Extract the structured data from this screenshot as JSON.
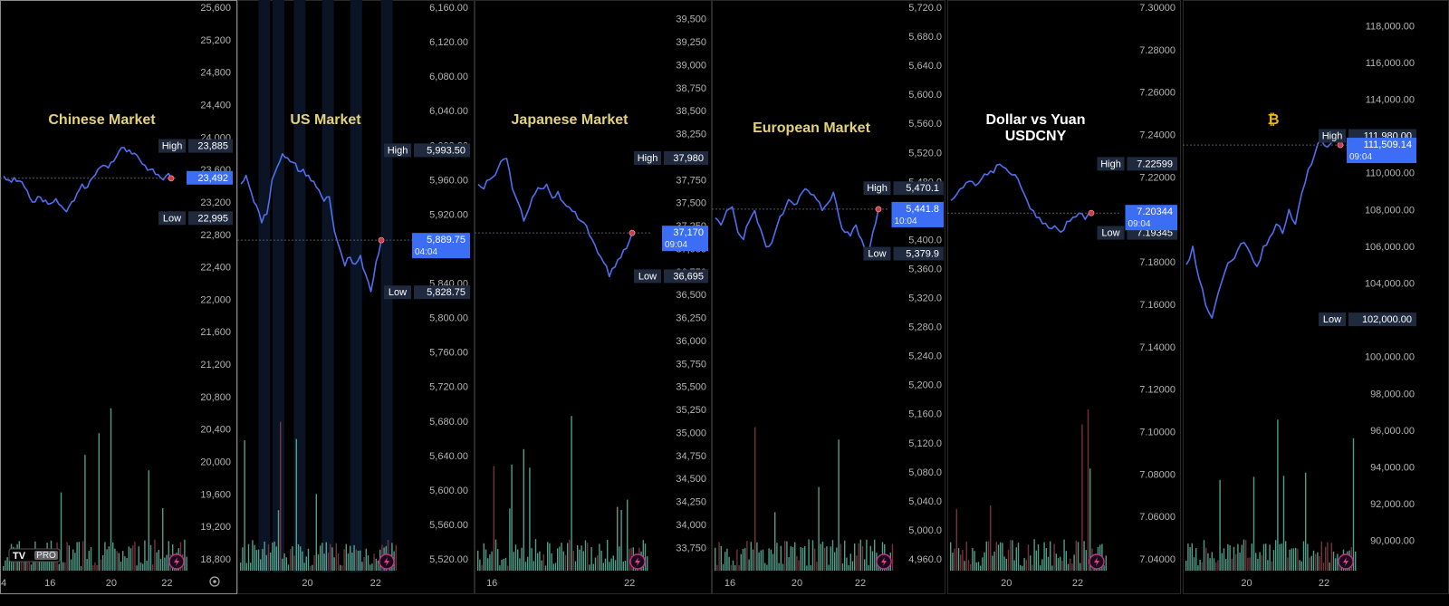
{
  "colors": {
    "background": "#000000",
    "line": "#4f6ff0",
    "volume_up": "#5fb8a0",
    "volume_down": "#8a3b45",
    "badge_tag": "#1f2a3f",
    "badge_price": "#3b6ef5",
    "title_yellow": "#e3d27a",
    "title_white": "#ffffff",
    "divider": "#2a2a2a"
  },
  "branding": {
    "logo_text": "TV",
    "pro_label": "PRO"
  },
  "chart_data": [
    {
      "type": "line",
      "title": "Chinese Market",
      "title_color": "#e3d27a",
      "y_ticks": [
        "25,600",
        "25,200",
        "24,800",
        "24,400",
        "24,000",
        "23,600",
        "23,200",
        "22,800",
        "22,400",
        "22,000",
        "21,600",
        "21,200",
        "20,800",
        "20,400",
        "20,000",
        "19,600",
        "19,200",
        "18,800"
      ],
      "ylim": [
        18800,
        25600
      ],
      "x_ticks": [
        {
          "label": "4",
          "x": 0
        },
        {
          "label": "16",
          "x": 0.25
        },
        {
          "label": "20",
          "x": 0.58
        },
        {
          "label": "22",
          "x": 0.88
        }
      ],
      "high": {
        "label": "High",
        "value": "23,885"
      },
      "low": {
        "label": "Low",
        "value": "22,995"
      },
      "last": {
        "value": "23,492",
        "time": ""
      },
      "prices": [
        23520,
        23470,
        23500,
        23460,
        23380,
        23250,
        23200,
        23260,
        23220,
        23180,
        23240,
        23150,
        23080,
        23200,
        23300,
        23420,
        23380,
        23500,
        23600,
        23650,
        23620,
        23700,
        23820,
        23870,
        23840,
        23800,
        23720,
        23650,
        23600,
        23540,
        23500,
        23520,
        23492
      ]
    },
    {
      "type": "line",
      "title": "US Market",
      "title_color": "#e3d27a",
      "y_ticks": [
        "6,160.00",
        "6,120.00",
        "6,080.00",
        "6,040.00",
        "6,000.00",
        "5,960.00",
        "5,920.00",
        "5,880.00",
        "5,840.00",
        "5,800.00",
        "5,760.00",
        "5,720.00",
        "5,680.00",
        "5,640.00",
        "5,600.00",
        "5,560.00",
        "5,520.00"
      ],
      "ylim": [
        5520,
        6160
      ],
      "x_ticks": [
        {
          "label": "20",
          "x": 0.42
        },
        {
          "label": "22",
          "x": 0.85
        }
      ],
      "high": {
        "label": "High",
        "value": "5,993.50"
      },
      "low": {
        "label": "Low",
        "value": "5,828.75"
      },
      "last": {
        "value": "5,889.75",
        "time": "04:04"
      },
      "prices": [
        5955,
        5965,
        5945,
        5930,
        5910,
        5920,
        5960,
        5975,
        5990,
        5985,
        5980,
        5970,
        5972,
        5965,
        5958,
        5948,
        5935,
        5940,
        5900,
        5880,
        5860,
        5870,
        5862,
        5872,
        5850,
        5830,
        5865,
        5889.75
      ]
    },
    {
      "type": "line",
      "title": "Japanese Market",
      "title_color": "#e3d27a",
      "y_ticks": [
        "39,500",
        "39,250",
        "39,000",
        "38,750",
        "38,500",
        "38,250",
        "38,000",
        "37,750",
        "37,500",
        "37,250",
        "37,000",
        "36,750",
        "36,500",
        "36,250",
        "36,000",
        "35,750",
        "35,500",
        "35,250",
        "35,000",
        "34,750",
        "34,500",
        "34,250",
        "34,000",
        "33,750"
      ],
      "ylim": [
        33625,
        39625
      ],
      "x_ticks": [
        {
          "label": "16",
          "x": 0.08
        },
        {
          "label": "22",
          "x": 0.88
        }
      ],
      "high": {
        "label": "High",
        "value": "37,980"
      },
      "low": {
        "label": "Low",
        "value": "36,695"
      },
      "last": {
        "value": "37,170",
        "time": "09:04"
      },
      "prices": [
        37700,
        37650,
        37750,
        37800,
        37950,
        37980,
        37650,
        37500,
        37300,
        37450,
        37600,
        37650,
        37700,
        37550,
        37620,
        37500,
        37450,
        37400,
        37300,
        37250,
        37100,
        36950,
        36850,
        36695,
        36800,
        36900,
        37000,
        37170
      ]
    },
    {
      "type": "line",
      "title": "European Market",
      "title_color": "#e3d27a",
      "y_ticks": [
        "5,720.0",
        "5,680.0",
        "5,640.0",
        "5,600.0",
        "5,560.0",
        "5,520.0",
        "5,480.0",
        "5,440.0",
        "5,400.0",
        "5,360.0",
        "5,320.0",
        "5,280.0",
        "5,240.0",
        "5,200.0",
        "5,160.0",
        "5,120.0",
        "5,080.0",
        "5,040.0",
        "5,000.0",
        "4,960.0"
      ],
      "ylim": [
        4960,
        5720
      ],
      "x_ticks": [
        {
          "label": "16",
          "x": 0.08
        },
        {
          "label": "20",
          "x": 0.45
        },
        {
          "label": "22",
          "x": 0.8
        }
      ],
      "high": {
        "label": "High",
        "value": "5,470.1"
      },
      "low": {
        "label": "Low",
        "value": "5,379.9"
      },
      "last": {
        "value": "5,441.8",
        "time": "10:04"
      },
      "prices": [
        5430,
        5420,
        5440,
        5445,
        5410,
        5400,
        5425,
        5440,
        5415,
        5390,
        5395,
        5420,
        5435,
        5455,
        5448,
        5460,
        5470,
        5462,
        5455,
        5440,
        5450,
        5465,
        5430,
        5410,
        5405,
        5420,
        5400,
        5379.9,
        5410,
        5441.8
      ]
    },
    {
      "type": "line",
      "title": "Dollar vs Yuan\nUSDCNY",
      "title_color": "#ffffff",
      "y_ticks": [
        "7.30000",
        "7.28000",
        "7.26000",
        "7.24000",
        "7.22000",
        "7.20000",
        "7.18000",
        "7.16000",
        "7.14000",
        "7.12000",
        "7.10000",
        "7.08000",
        "7.06000",
        "7.04000"
      ],
      "ylim": [
        7.04,
        7.3
      ],
      "x_ticks": [
        {
          "label": "20",
          "x": 0.35
        },
        {
          "label": "22",
          "x": 0.8
        }
      ],
      "high": {
        "label": "High",
        "value": "7.22599"
      },
      "low": {
        "label": "Low",
        "value": "7.19345"
      },
      "last": {
        "value": "7.20344",
        "time": "09:04"
      },
      "prices": [
        7.209,
        7.212,
        7.215,
        7.218,
        7.216,
        7.219,
        7.221,
        7.222,
        7.226,
        7.224,
        7.221,
        7.219,
        7.212,
        7.205,
        7.201,
        7.198,
        7.196,
        7.197,
        7.194,
        7.199,
        7.201,
        7.203,
        7.2,
        7.203
      ]
    },
    {
      "type": "line",
      "title": "₿",
      "title_color": "#f0b90b",
      "y_ticks": [
        "118,000.00",
        "116,000.00",
        "114,000.00",
        "112,000.00",
        "110,000.00",
        "108,000.00",
        "106,000.00",
        "104,000.00",
        "102,000.00",
        "100,000.00",
        "98,000.00",
        "96,000.00",
        "94,000.00",
        "92,000.00",
        "90,000.00"
      ],
      "ylim": [
        89000,
        119000
      ],
      "x_ticks": [
        {
          "label": "20",
          "x": 0.35
        },
        {
          "label": "22",
          "x": 0.8
        }
      ],
      "high": {
        "label": "High",
        "value": "111,980.00"
      },
      "low": {
        "label": "Low",
        "value": "102,000.00"
      },
      "last": {
        "value": "111,509.14",
        "time": "09:04"
      },
      "prices": [
        105000,
        106000,
        104200,
        102800,
        102100,
        103500,
        104600,
        105200,
        105800,
        106200,
        105600,
        104900,
        106000,
        106500,
        107200,
        106700,
        108000,
        107200,
        108900,
        110200,
        111000,
        111800,
        111400,
        111980,
        111509
      ]
    }
  ]
}
